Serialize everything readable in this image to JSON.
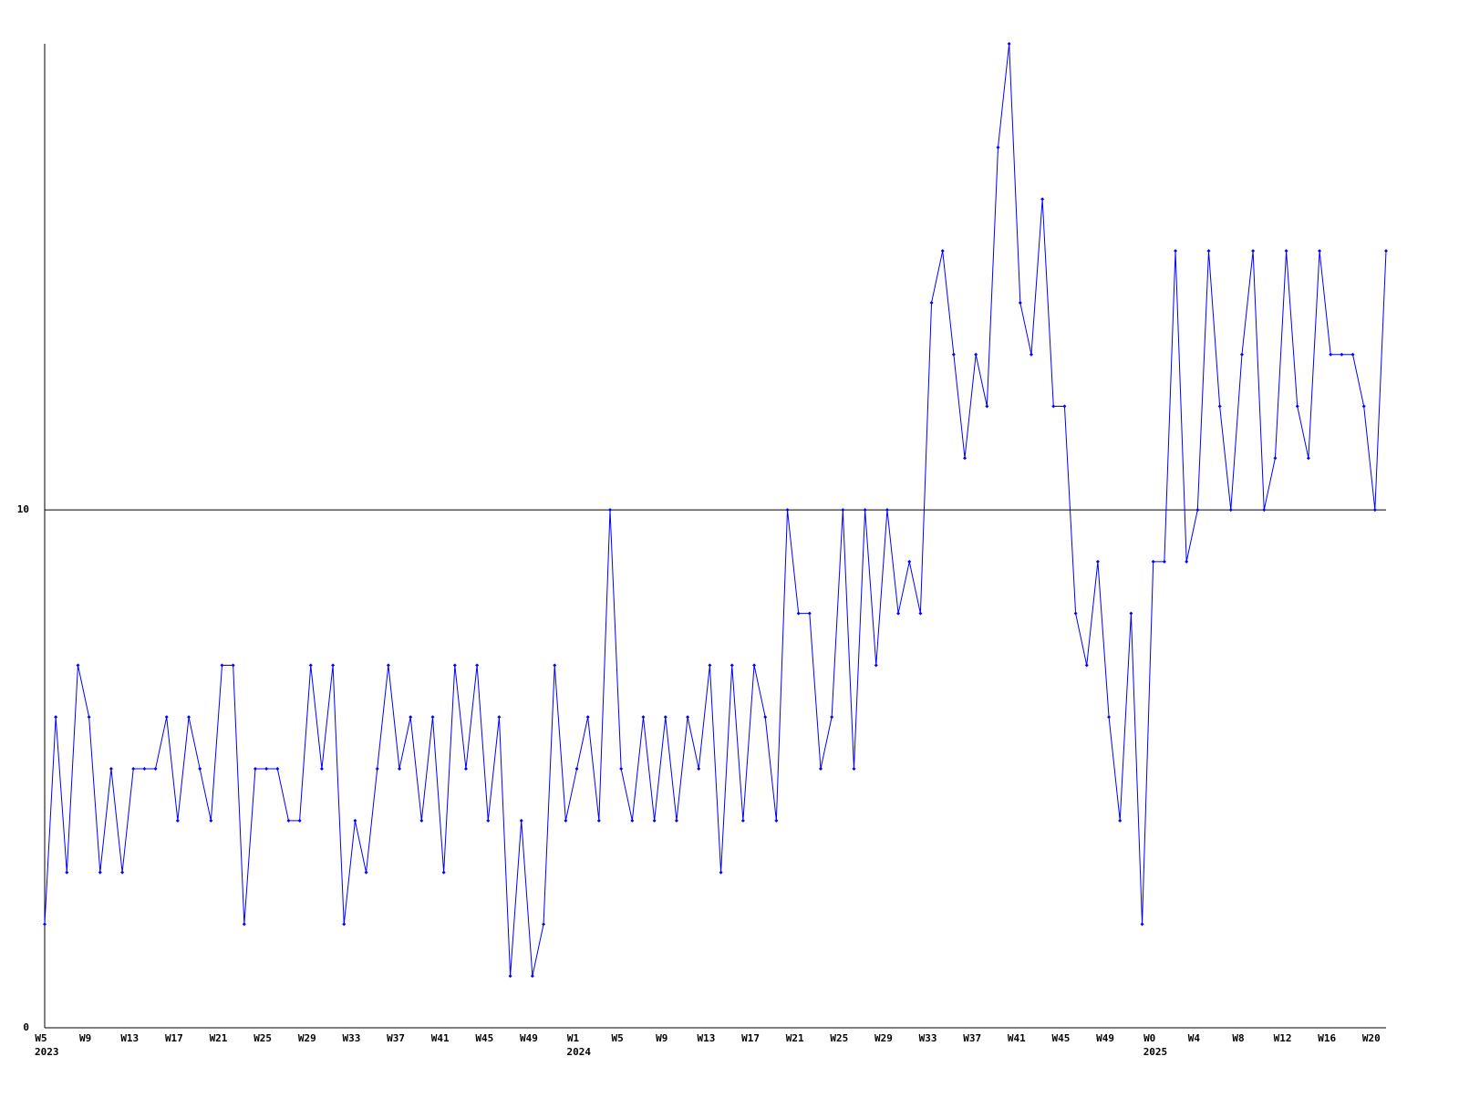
{
  "chart_data": {
    "type": "line",
    "categories": [
      "W5",
      null,
      null,
      null,
      "W9",
      null,
      null,
      null,
      "W13",
      null,
      null,
      null,
      "W17",
      null,
      null,
      null,
      "W21",
      null,
      null,
      null,
      "W25",
      null,
      null,
      null,
      "W29",
      null,
      null,
      null,
      "W33",
      null,
      null,
      null,
      "W37",
      null,
      null,
      null,
      "W41",
      null,
      null,
      null,
      "W45",
      null,
      null,
      null,
      "W49",
      null,
      null,
      null,
      "W1",
      null,
      null,
      null,
      "W5",
      null,
      null,
      null,
      "W9",
      null,
      null,
      null,
      "W13",
      null,
      null,
      null,
      "W17",
      null,
      null,
      null,
      "W21",
      null,
      null,
      null,
      "W25",
      null,
      null,
      null,
      "W29",
      null,
      null,
      null,
      "W33",
      null,
      null,
      null,
      "W37",
      null,
      null,
      null,
      "W41",
      null,
      null,
      null,
      "W45",
      null,
      null,
      null,
      "W49",
      null,
      null,
      null,
      "W0",
      null,
      null,
      null,
      "W4",
      null,
      null,
      null,
      "W8",
      null,
      null,
      null,
      "W12",
      null,
      null,
      null,
      "W16",
      null,
      null,
      null,
      "W20",
      null
    ],
    "year_labels": [
      "2023",
      null,
      null,
      null,
      null,
      null,
      null,
      null,
      null,
      null,
      null,
      null,
      null,
      null,
      null,
      null,
      null,
      null,
      null,
      null,
      null,
      null,
      null,
      null,
      null,
      null,
      null,
      null,
      null,
      null,
      null,
      null,
      null,
      null,
      null,
      null,
      null,
      null,
      null,
      null,
      null,
      null,
      null,
      null,
      null,
      null,
      null,
      null,
      "2024",
      null,
      null,
      null,
      null,
      null,
      null,
      null,
      null,
      null,
      null,
      null,
      null,
      null,
      null,
      null,
      null,
      null,
      null,
      null,
      null,
      null,
      null,
      null,
      null,
      null,
      null,
      null,
      null,
      null,
      null,
      null,
      null,
      null,
      null,
      null,
      null,
      null,
      null,
      null,
      null,
      null,
      null,
      null,
      null,
      null,
      null,
      null,
      null,
      null,
      null,
      null,
      "2025",
      null,
      null,
      null,
      null,
      null,
      null,
      null,
      null,
      null,
      null,
      null,
      null,
      null,
      null,
      null,
      null,
      null,
      null,
      null,
      null,
      null
    ],
    "series": [
      {
        "color": "#0000ff",
        "values": [
          2,
          6,
          3,
          7,
          6,
          3,
          5,
          3,
          5,
          5,
          5,
          6,
          4,
          6,
          5,
          4,
          7,
          7,
          2,
          5,
          5,
          5,
          4,
          4,
          7,
          5,
          7,
          2,
          4,
          3,
          5,
          7,
          5,
          6,
          4,
          6,
          3,
          7,
          5,
          7,
          4,
          6,
          1,
          4,
          1,
          2,
          7,
          4,
          5,
          6,
          4,
          10,
          5,
          4,
          6,
          4,
          6,
          4,
          6,
          5,
          7,
          3,
          7,
          4,
          7,
          6,
          4,
          10,
          8,
          8,
          5,
          6,
          10,
          5,
          10,
          7,
          10,
          8,
          9,
          8,
          14,
          15,
          13,
          11,
          13,
          12,
          17,
          19,
          14,
          13,
          16,
          12,
          12,
          8,
          7,
          9,
          6,
          4,
          8,
          2,
          9,
          9,
          15,
          9,
          10,
          15,
          12,
          10,
          13,
          15,
          10,
          11,
          15,
          12,
          11,
          15,
          13,
          13,
          13,
          12,
          10,
          15
        ]
      }
    ],
    "ylim": [
      0,
      19
    ],
    "yticks": [
      0,
      10
    ],
    "grid": true,
    "grid_color": "#000000",
    "axis_color": "#000000"
  }
}
